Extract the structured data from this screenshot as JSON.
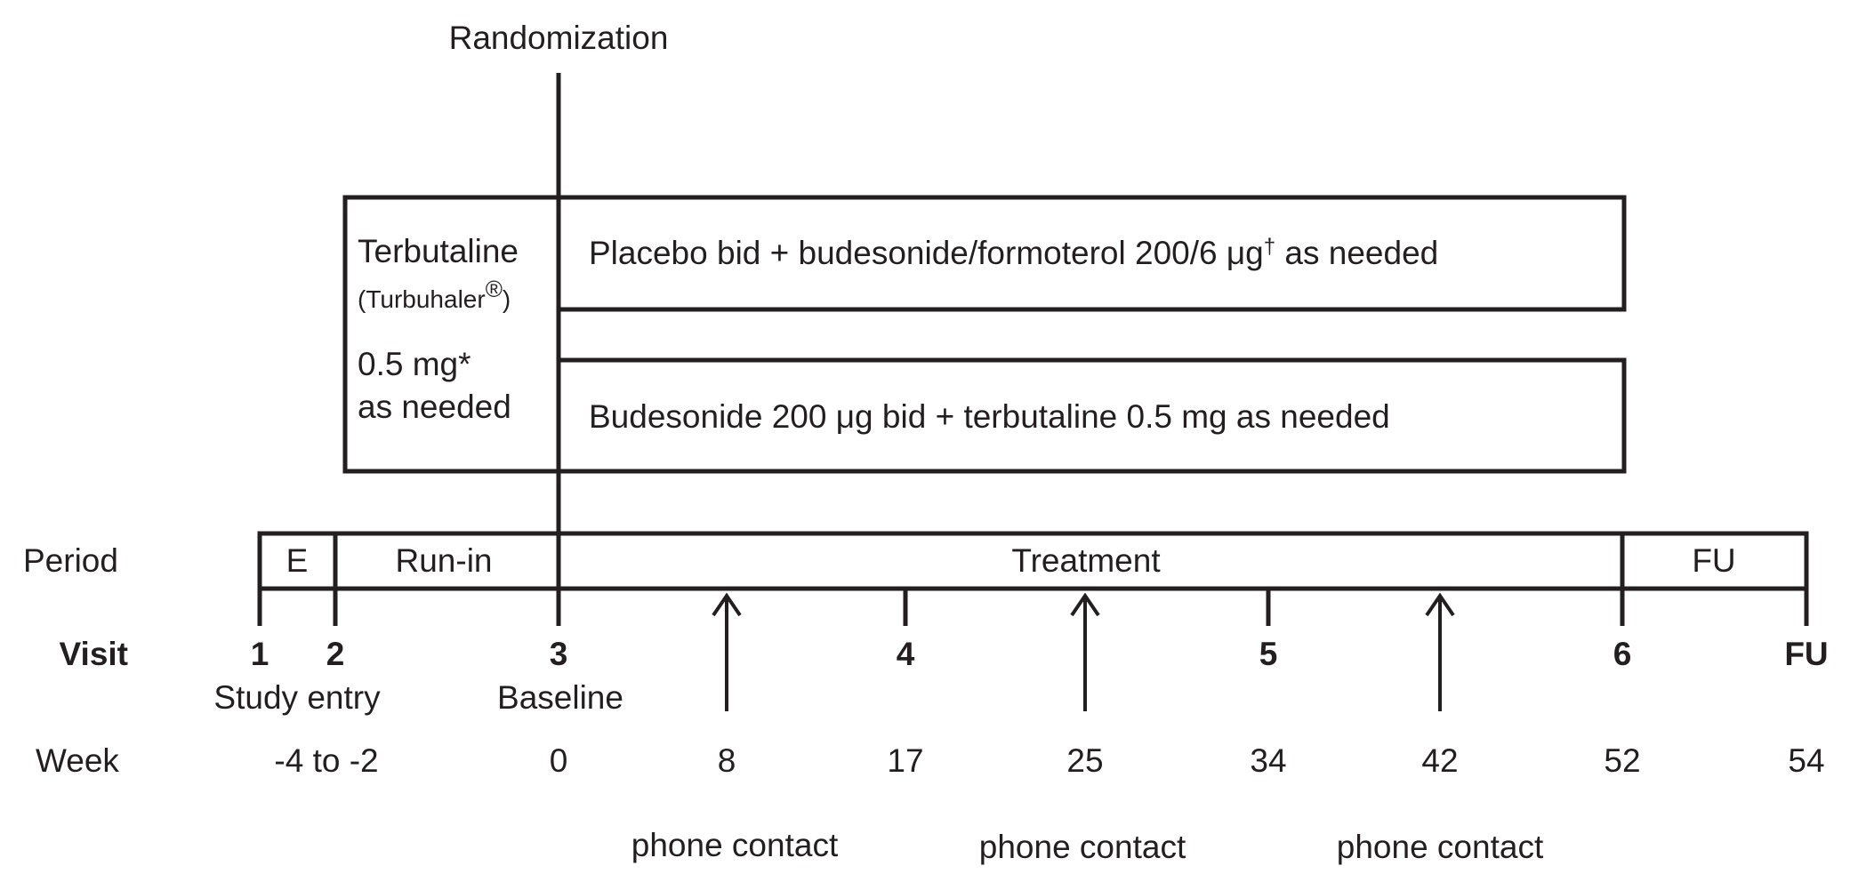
{
  "randomization_label": "Randomization",
  "run_in_box": {
    "drug": "Terbutaline",
    "device": "(Turbuhaler",
    "device_mark": "®",
    "device_close": ")",
    "dose": "0.5 mg*",
    "usage": "as needed"
  },
  "arms": [
    {
      "text": "Placebo bid + budesonide/formoterol 200/6 μg",
      "mark": "†",
      "text_after": " as needed"
    },
    {
      "text": "Budesonide 200 μg bid + terbutaline 0.5 mg as needed"
    }
  ],
  "period": {
    "row_label": "Period",
    "segments": [
      "E",
      "Run-in",
      "Treatment",
      "FU"
    ]
  },
  "visit": {
    "row_label": "Visit",
    "numbers": [
      "1",
      "2",
      "3",
      "4",
      "5",
      "6",
      "FU"
    ],
    "captions": {
      "study_entry": "Study entry",
      "baseline": "Baseline"
    }
  },
  "week": {
    "row_label": "Week",
    "values": [
      "-4 to -2",
      "0",
      "8",
      "17",
      "25",
      "34",
      "42",
      "52",
      "54"
    ]
  },
  "phone_contact_label": "phone contact",
  "colors": {
    "line": "#231f20",
    "background": "#ffffff"
  }
}
